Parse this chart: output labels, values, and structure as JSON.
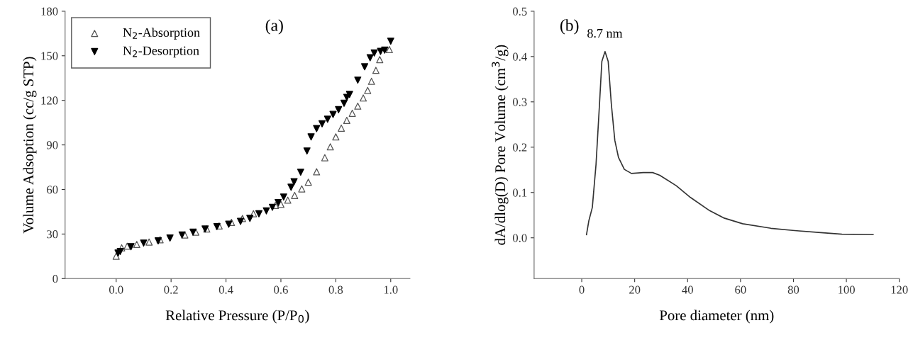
{
  "chart_data": [
    {
      "type": "scatter",
      "title": "(a)",
      "xlabel": "Relative Pressure (P/P$_{0}$)",
      "ylabel": "Volume Adsoption (cc/g STP)",
      "xlim": [
        -0.186,
        1.07
      ],
      "xticks": [
        {
          "value": 0,
          "label": "0.0"
        },
        0.2,
        0.4,
        0.6,
        0.8,
        {
          "value": 1,
          "label": "1.0"
        }
      ],
      "ylim": [
        0,
        180
      ],
      "yticks": [
        0,
        30,
        60,
        90,
        120,
        150,
        180
      ],
      "grid": false,
      "legend": "top left",
      "series": [
        {
          "name": "N$_{2}$-Absorption",
          "color": "#555555",
          "marker": "triangle",
          "x": [
            0,
            0.007,
            0.02,
            0.04,
            0.075,
            0.12,
            0.16,
            0.2,
            0.25,
            0.29,
            0.33,
            0.375,
            0.42,
            0.46,
            0.5,
            0.55,
            0.58,
            0.6,
            0.625,
            0.65,
            0.676,
            0.7,
            0.73,
            0.76,
            0.78,
            0.8,
            0.82,
            0.84,
            0.86,
            0.88,
            0.9,
            0.916,
            0.93,
            0.946,
            0.96,
            0.976,
            0.995
          ],
          "values": [
            15.1,
            null,
            20.7,
            21.8,
            23,
            24.6,
            26.2,
            null,
            29.4,
            31.3,
            33.4,
            35.5,
            37.8,
            40.5,
            43.7,
            null,
            49.3,
            50,
            52.8,
            56,
            60.4,
            64.9,
            71.9,
            81.4,
            88.7,
            95.4,
            101.3,
            106.5,
            111.3,
            116.1,
            121.6,
            126.7,
            132.8,
            140.2,
            147.4,
            null,
            154.2
          ]
        },
        {
          "name": "N$_{2}$-Desorption",
          "color": "#000000",
          "marker": "triangle_down",
          "x": [
            1.0,
            0.978,
            0.963,
            0.94,
            0.925,
            0.905,
            0.88,
            0.85,
            0.84,
            0.83,
            0.81,
            0.79,
            0.77,
            0.75,
            0.73,
            0.71,
            0.695,
            0.672,
            0.648,
            0.637,
            0.61,
            0.59,
            0.569,
            0.547,
            0.52,
            0.487,
            0.453,
            0.41,
            0.367,
            0.324,
            0.28,
            0.24,
            0.196,
            0.153,
            0.1,
            0.054,
            0.015,
            0.007
          ],
          "values": [
            159.8,
            153.8,
            153,
            151.9,
            148.7,
            142.6,
            133.6,
            124,
            122,
            118,
            113.7,
            110.5,
            107.3,
            104.2,
            101,
            95.4,
            85.9,
            71.6,
            65.2,
            61.5,
            54.9,
            51.2,
            48,
            45.6,
            43.6,
            40.5,
            38.5,
            36.6,
            35,
            33.4,
            31.3,
            29.4,
            27.3,
            25.4,
            23.9,
            21.5,
            18.3,
            17.2
          ]
        }
      ]
    },
    {
      "type": "line",
      "title": "(b)",
      "xlabel": "Pore diameter (nm)",
      "ylabel": "dA/dlog(D) Pore Volume (cm$^{3}$/g)",
      "xlim": [
        -18,
        120
      ],
      "xticks": [
        0,
        20,
        40,
        60,
        80,
        100,
        120
      ],
      "ylim": [
        -0.09,
        0.5
      ],
      "yticks": [
        {
          "value": 0,
          "label": "0.0"
        },
        0.1,
        0.2,
        0.3,
        0.4,
        0.5
      ],
      "grid": false,
      "line_style": "solid",
      "annotations": [
        {
          "text": "8.7 nm",
          "x": 8.7,
          "y": 0.41
        }
      ],
      "series": [
        {
          "color": "#333333",
          "x": [
            1.8,
            2.7,
            4.0,
            5.4,
            6.7,
            7.6,
            8.8,
            10.0,
            11.2,
            12.5,
            13.9,
            16.1,
            18.8,
            23.2,
            26.8,
            29.5,
            35.7,
            41.1,
            48.3,
            53.6,
            60.8,
            71.5,
            80.4,
            89.4,
            98.3,
            110.1
          ],
          "values": [
            0.007,
            0.038,
            0.067,
            0.162,
            0.294,
            0.389,
            0.411,
            0.389,
            0.294,
            0.215,
            0.177,
            0.151,
            0.142,
            0.144,
            0.144,
            0.138,
            0.115,
            0.089,
            0.06,
            0.044,
            0.031,
            0.021,
            0.016,
            0.012,
            0.008,
            0.007
          ]
        }
      ]
    }
  ]
}
